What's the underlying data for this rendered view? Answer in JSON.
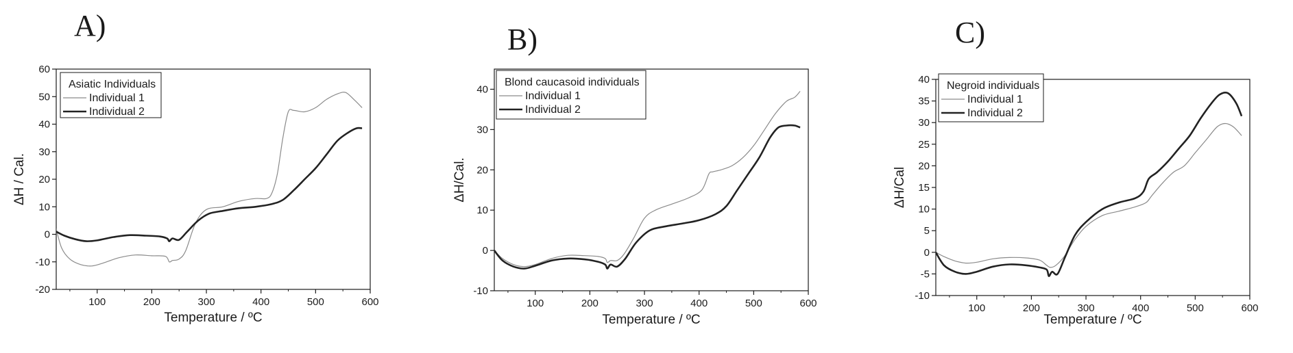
{
  "chart_data": [
    {
      "type": "line",
      "panel_label": "A)",
      "legend_title": "Asiatic Individuals",
      "xlabel": "Temperature / ºC",
      "ylabel": "ΔH / Cal.",
      "xlim": [
        25,
        600
      ],
      "ylim": [
        -20,
        60
      ],
      "xticks": [
        100,
        200,
        300,
        400,
        500,
        600
      ],
      "yticks": [
        -20,
        -10,
        0,
        10,
        20,
        30,
        40,
        50,
        60
      ],
      "series": [
        {
          "name": "Individual 1",
          "style": "thin",
          "color": "#8a8a8a",
          "x": [
            25,
            35,
            50,
            70,
            90,
            110,
            140,
            170,
            200,
            225,
            232,
            238,
            250,
            262,
            280,
            300,
            330,
            360,
            390,
            410,
            420,
            430,
            440,
            450,
            460,
            480,
            500,
            520,
            540,
            555,
            570,
            585
          ],
          "y": [
            2,
            -5,
            -9,
            -11,
            -11.5,
            -10.5,
            -8.5,
            -7.5,
            -7.8,
            -8,
            -10,
            -9.5,
            -9,
            -6,
            4,
            9,
            10,
            12,
            13,
            13,
            15,
            22,
            35,
            44.5,
            45,
            44.5,
            46,
            49,
            51,
            51.5,
            49,
            46
          ]
        },
        {
          "name": "Individual 2",
          "style": "thick",
          "color": "#222222",
          "x": [
            25,
            40,
            60,
            80,
            100,
            130,
            160,
            190,
            215,
            228,
            232,
            238,
            250,
            265,
            285,
            305,
            330,
            360,
            390,
            420,
            440,
            460,
            480,
            500,
            520,
            540,
            560,
            575,
            585
          ],
          "y": [
            1,
            -0.5,
            -1.8,
            -2.5,
            -2.2,
            -1,
            -0.3,
            -0.5,
            -0.8,
            -1.5,
            -2.5,
            -1.5,
            -2,
            1,
            5,
            7.5,
            8.5,
            9.5,
            10,
            11,
            12.5,
            16,
            20,
            24,
            29,
            34,
            37,
            38.5,
            38.5
          ]
        }
      ]
    },
    {
      "type": "line",
      "panel_label": "B)",
      "legend_title": "Blond caucasoid individuals",
      "xlabel": "Temperature / ºC",
      "ylabel": "ΔH/Cal.",
      "xlim": [
        25,
        600
      ],
      "ylim": [
        -10,
        45
      ],
      "xticks": [
        100,
        200,
        300,
        400,
        500,
        600
      ],
      "yticks": [
        -10,
        0,
        10,
        20,
        30,
        40
      ],
      "series": [
        {
          "name": "Individual 1",
          "style": "thin",
          "color": "#8a8a8a",
          "x": [
            25,
            40,
            60,
            80,
            100,
            130,
            160,
            190,
            215,
            228,
            232,
            238,
            250,
            262,
            280,
            300,
            320,
            350,
            380,
            405,
            418,
            425,
            440,
            460,
            480,
            500,
            520,
            540,
            560,
            575,
            585
          ],
          "y": [
            0,
            -2,
            -3.5,
            -4,
            -3.5,
            -2,
            -1.2,
            -1.3,
            -1.5,
            -2,
            -3,
            -2.5,
            -2.5,
            -1,
            3,
            8,
            10,
            11.5,
            13,
            15,
            19,
            19.5,
            20,
            21,
            23,
            26,
            30,
            34,
            37,
            38,
            39.5
          ]
        },
        {
          "name": "Individual 2",
          "style": "thick",
          "color": "#222222",
          "x": [
            25,
            40,
            60,
            80,
            100,
            130,
            160,
            190,
            215,
            228,
            232,
            238,
            250,
            265,
            285,
            310,
            340,
            370,
            400,
            430,
            450,
            470,
            490,
            510,
            530,
            545,
            560,
            575,
            585
          ],
          "y": [
            0,
            -2.5,
            -4,
            -4.5,
            -3.8,
            -2.5,
            -2,
            -2.2,
            -2.8,
            -3.5,
            -4.5,
            -3.5,
            -4,
            -2,
            2,
            5,
            6,
            6.7,
            7.5,
            9,
            11,
            15,
            19,
            23,
            28,
            30.5,
            31,
            31,
            30.5
          ]
        }
      ]
    },
    {
      "type": "line",
      "panel_label": "C)",
      "legend_title": "Negroid individuals",
      "xlabel": "Temperature / ºC",
      "ylabel": "ΔH/Cal",
      "xlim": [
        25,
        600
      ],
      "ylim": [
        -10,
        40
      ],
      "xticks": [
        100,
        200,
        300,
        400,
        500,
        600
      ],
      "yticks": [
        -10,
        -5,
        0,
        5,
        10,
        15,
        20,
        25,
        30,
        35,
        40
      ],
      "series": [
        {
          "name": "Individual 1",
          "style": "thin",
          "color": "#8a8a8a",
          "x": [
            25,
            40,
            60,
            80,
            100,
            130,
            160,
            190,
            215,
            228,
            235,
            245,
            260,
            280,
            300,
            330,
            360,
            390,
            410,
            420,
            440,
            460,
            480,
            500,
            520,
            540,
            555,
            570,
            585
          ],
          "y": [
            0,
            -1,
            -2,
            -2.5,
            -2.3,
            -1.5,
            -1.2,
            -1.3,
            -1.8,
            -3,
            -3.5,
            -3,
            -1,
            3,
            6,
            8.5,
            9.5,
            10.5,
            11.5,
            13,
            16,
            18.5,
            20,
            23,
            26,
            29,
            29.8,
            29,
            27
          ]
        },
        {
          "name": "Individual 2",
          "style": "thick",
          "color": "#222222",
          "x": [
            25,
            40,
            60,
            80,
            100,
            130,
            160,
            190,
            215,
            228,
            232,
            238,
            248,
            262,
            280,
            300,
            330,
            360,
            390,
            405,
            415,
            430,
            450,
            470,
            490,
            510,
            530,
            545,
            560,
            575,
            585
          ],
          "y": [
            0,
            -3,
            -4.5,
            -5,
            -4.5,
            -3.3,
            -2.8,
            -3,
            -3.5,
            -4,
            -5.5,
            -4.5,
            -5,
            -1,
            4,
            7,
            10,
            11.5,
            12.5,
            14,
            17,
            18.5,
            21,
            24,
            27,
            31,
            34.5,
            36.5,
            36.8,
            34.5,
            31.5
          ]
        }
      ]
    }
  ]
}
